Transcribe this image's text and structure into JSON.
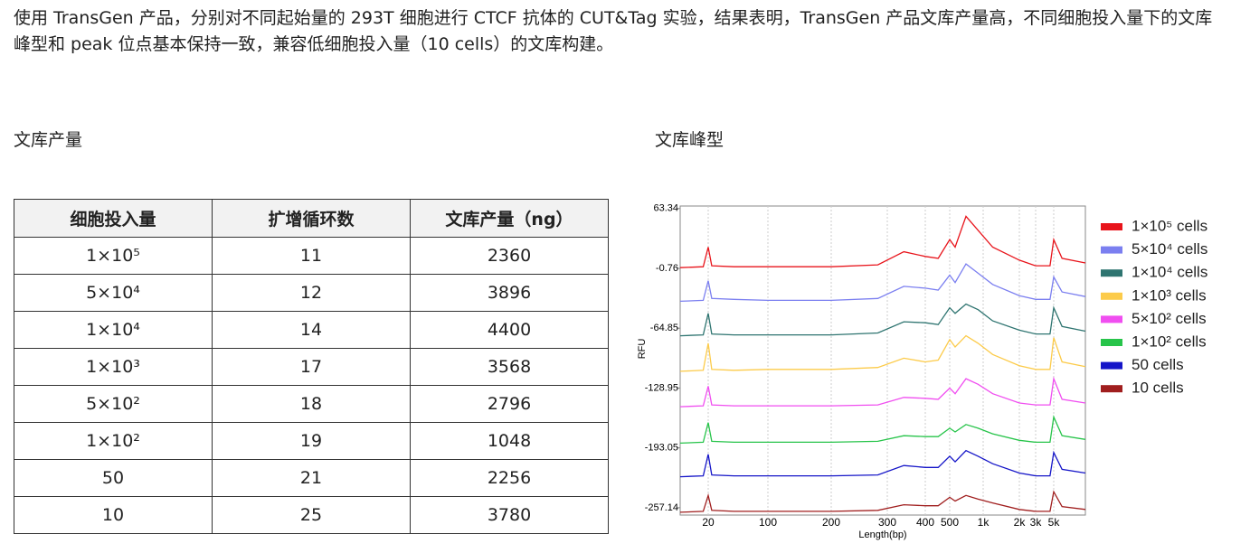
{
  "intro": "使用 TransGen 产品，分别对不同起始量的 293T 细胞进行 CTCF 抗体的 CUT&Tag 实验，结果表明，TransGen 产品文库产量高，不同细胞投入量下的文库峰型和 peak 位点基本保持一致，兼容低细胞投入量（10 cells）的文库构建。",
  "yield_heading": "文库产量",
  "table": {
    "header": [
      "细胞投入量",
      "扩增循环数",
      "文库产量（ng）"
    ],
    "rows": [
      [
        "1×10⁵",
        11,
        2360
      ],
      [
        "5×10⁴",
        12,
        3896
      ],
      [
        "1×10⁴",
        14,
        4400
      ],
      [
        "1×10³",
        17,
        3568
      ],
      [
        "5×10²",
        18,
        2796
      ],
      [
        "1×10²",
        19,
        1048
      ],
      [
        50,
        21,
        2256
      ],
      [
        10,
        25,
        3780
      ]
    ]
  },
  "profile_heading": "文库峰型",
  "chart_data": {
    "type": "line",
    "x_label": "Length(bp)",
    "y_label": "RFU",
    "grid": true,
    "xlim": [
      15,
      10000
    ],
    "xticks": [
      20,
      100,
      200,
      300,
      400,
      500,
      {
        "value": 1000,
        "label": "1k"
      },
      {
        "value": 2000,
        "label": "2k"
      },
      {
        "value": 3000,
        "label": "3k"
      },
      {
        "value": 5000,
        "label": "5k"
      }
    ],
    "ylim": [
      -265,
      66
    ],
    "yticks": [
      63.34,
      -0.76,
      -64.85,
      -128.95,
      -193.05,
      -257.14
    ],
    "x": [
      15,
      19,
      20,
      22,
      40,
      100,
      200,
      280,
      340,
      400,
      450,
      500,
      560,
      700,
      900,
      1200,
      2000,
      3000,
      4500,
      5000,
      6000,
      10000
    ],
    "series": [
      {
        "name": "1×10⁵ cells",
        "color": "#e8141b",
        "values": [
          0,
          1,
          22,
          2,
          1,
          1,
          1,
          3,
          17,
          12,
          10,
          30,
          22,
          55,
          40,
          22,
          8,
          2,
          2,
          30,
          10,
          5
        ]
      },
      {
        "name": "5×10⁴ cells",
        "color": "#7b7ff0",
        "values": [
          -36,
          -35,
          -14,
          -33,
          -34,
          -35,
          -35,
          -33,
          -20,
          -22,
          -24,
          -8,
          -16,
          4,
          -6,
          -18,
          -30,
          -34,
          -34,
          -10,
          -26,
          -31
        ]
      },
      {
        "name": "1×10⁴ cells",
        "color": "#2e7470",
        "values": [
          -73,
          -72,
          -49,
          -71,
          -72,
          -72,
          -72,
          -70,
          -58,
          -59,
          -61,
          -43,
          -49,
          -39,
          -45,
          -57,
          -67,
          -71,
          -71,
          -43,
          -63,
          -68
        ]
      },
      {
        "name": "1×10³ cells",
        "color": "#fccb4a",
        "values": [
          -111,
          -110,
          -81,
          -109,
          -110,
          -109,
          -109,
          -107,
          -97,
          -101,
          -99,
          -77,
          -85,
          -73,
          -81,
          -93,
          -105,
          -109,
          -109,
          -75,
          -101,
          -106
        ]
      },
      {
        "name": "5×10² cells",
        "color": "#f04ef0",
        "values": [
          -149,
          -148,
          -127,
          -147,
          -148,
          -148,
          -148,
          -147,
          -139,
          -140,
          -141,
          -129,
          -135,
          -119,
          -125,
          -135,
          -145,
          -147,
          -147,
          -119,
          -141,
          -145
        ]
      },
      {
        "name": "1×10² cells",
        "color": "#27c44a",
        "values": [
          -188,
          -187,
          -166,
          -186,
          -187,
          -187,
          -187,
          -186,
          -180,
          -181,
          -181,
          -172,
          -176,
          -168,
          -172,
          -178,
          -185,
          -187,
          -187,
          -160,
          -180,
          -184
        ]
      },
      {
        "name": "50 cells",
        "color": "#1515c8",
        "values": [
          -224,
          -223,
          -200,
          -222,
          -223,
          -223,
          -223,
          -222,
          -212,
          -214,
          -214,
          -202,
          -208,
          -196,
          -202,
          -210,
          -220,
          -223,
          -223,
          -198,
          -216,
          -220
        ]
      },
      {
        "name": "10 cells",
        "color": "#a01e1e",
        "values": [
          -262,
          -261,
          -244,
          -260,
          -261,
          -261,
          -261,
          -260,
          -254,
          -255,
          -255,
          -246,
          -250,
          -244,
          -248,
          -252,
          -259,
          -261,
          -261,
          -240,
          -256,
          -259
        ]
      }
    ]
  }
}
